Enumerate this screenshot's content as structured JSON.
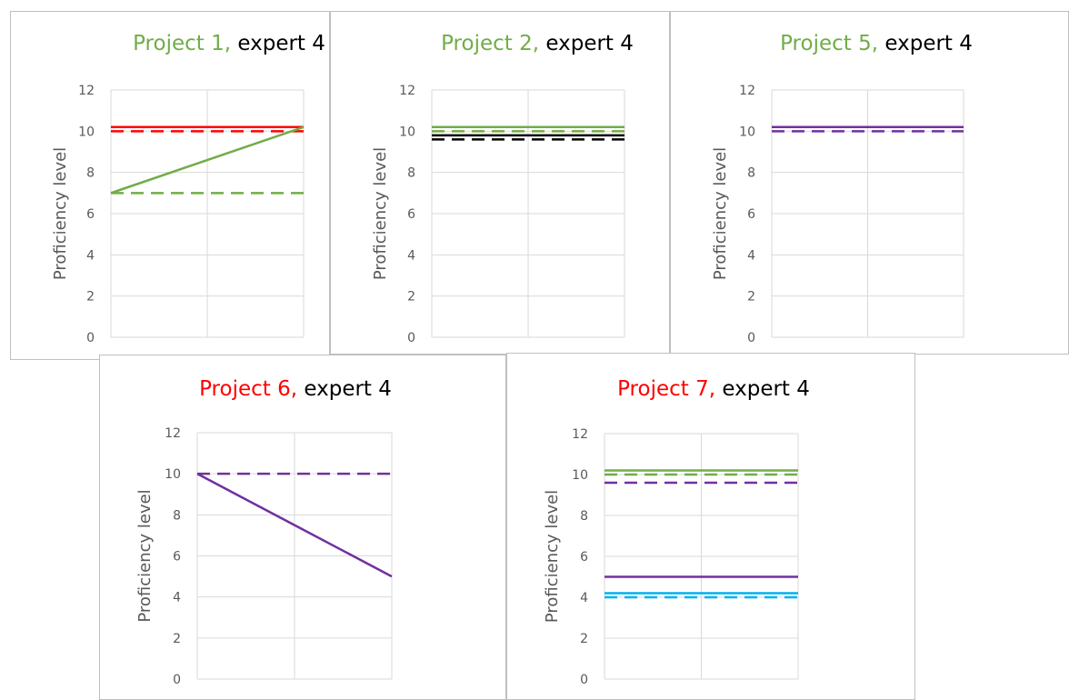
{
  "colors": {
    "green_title": "#2ea86a",
    "red_title": "#e8121b",
    "black": "#000000",
    "red": "#ff0000",
    "green": "#70ad47",
    "purple": "#7030a0",
    "cyan": "#00b0f0",
    "grid": "#d9d9d9",
    "tick_text": "#595959"
  },
  "chart_data": [
    {
      "type": "line",
      "title_project": "Project 1,",
      "title_expert": " expert 4",
      "title_project_color": "green",
      "ylabel": "Proficiency level",
      "ylim": [
        0,
        12
      ],
      "yticks": [
        0,
        2,
        4,
        6,
        8,
        10,
        12
      ],
      "x": [
        0,
        1,
        2
      ],
      "grid": true,
      "series": [
        {
          "color": "red",
          "dash": false,
          "values": [
            10.2,
            10.2,
            10.2
          ]
        },
        {
          "color": "red",
          "dash": true,
          "values": [
            10,
            10,
            10
          ]
        },
        {
          "color": "green",
          "dash": false,
          "values": [
            7,
            8.6,
            10.2
          ]
        },
        {
          "color": "green",
          "dash": true,
          "values": [
            7,
            7,
            7
          ]
        }
      ]
    },
    {
      "type": "line",
      "title_project": "Project 2,",
      "title_expert": " expert 4",
      "title_project_color": "green",
      "ylabel": "Proficiency level",
      "ylim": [
        0,
        12
      ],
      "yticks": [
        0,
        2,
        4,
        6,
        8,
        10,
        12
      ],
      "x": [
        0,
        1,
        2
      ],
      "grid": true,
      "series": [
        {
          "color": "green",
          "dash": false,
          "values": [
            10.2,
            10.2,
            10.2
          ]
        },
        {
          "color": "green",
          "dash": true,
          "values": [
            10,
            10,
            10
          ]
        },
        {
          "color": "black",
          "dash": false,
          "values": [
            9.8,
            9.8,
            9.8
          ]
        },
        {
          "color": "black",
          "dash": true,
          "values": [
            9.6,
            9.6,
            9.6
          ]
        }
      ]
    },
    {
      "type": "line",
      "title_project": "Project 5,",
      "title_expert": " expert 4",
      "title_project_color": "green",
      "ylabel": "Proficiency level",
      "ylim": [
        0,
        12
      ],
      "yticks": [
        0,
        2,
        4,
        6,
        8,
        10,
        12
      ],
      "x": [
        0,
        1,
        2
      ],
      "grid": true,
      "series": [
        {
          "color": "purple",
          "dash": false,
          "values": [
            10.2,
            10.2,
            10.2
          ]
        },
        {
          "color": "purple",
          "dash": true,
          "values": [
            10,
            10,
            10
          ]
        }
      ]
    },
    {
      "type": "line",
      "title_project": "Project 6,",
      "title_expert": " expert 4",
      "title_project_color": "red",
      "ylabel": "Proficiency level",
      "ylim": [
        0,
        12
      ],
      "yticks": [
        0,
        2,
        4,
        6,
        8,
        10,
        12
      ],
      "x": [
        0,
        1,
        2
      ],
      "grid": true,
      "series": [
        {
          "color": "purple",
          "dash": true,
          "values": [
            10,
            10,
            10
          ]
        },
        {
          "color": "purple",
          "dash": false,
          "values": [
            10,
            7.5,
            5
          ]
        }
      ]
    },
    {
      "type": "line",
      "title_project": "Project 7,",
      "title_expert": " expert 4",
      "title_project_color": "red",
      "ylabel": "Proficiency level",
      "ylim": [
        0,
        12
      ],
      "yticks": [
        0,
        2,
        4,
        6,
        8,
        10,
        12
      ],
      "x": [
        0,
        1,
        2
      ],
      "grid": true,
      "series": [
        {
          "color": "green",
          "dash": false,
          "values": [
            10.2,
            10.2,
            10.2
          ]
        },
        {
          "color": "green",
          "dash": true,
          "values": [
            10,
            10,
            10
          ]
        },
        {
          "color": "purple",
          "dash": true,
          "values": [
            9.6,
            9.6,
            9.6
          ]
        },
        {
          "color": "purple",
          "dash": false,
          "values": [
            5,
            5,
            5
          ]
        },
        {
          "color": "cyan",
          "dash": false,
          "values": [
            4.2,
            4.2,
            4.2
          ]
        },
        {
          "color": "cyan",
          "dash": true,
          "values": [
            4,
            4,
            4
          ]
        }
      ]
    }
  ]
}
